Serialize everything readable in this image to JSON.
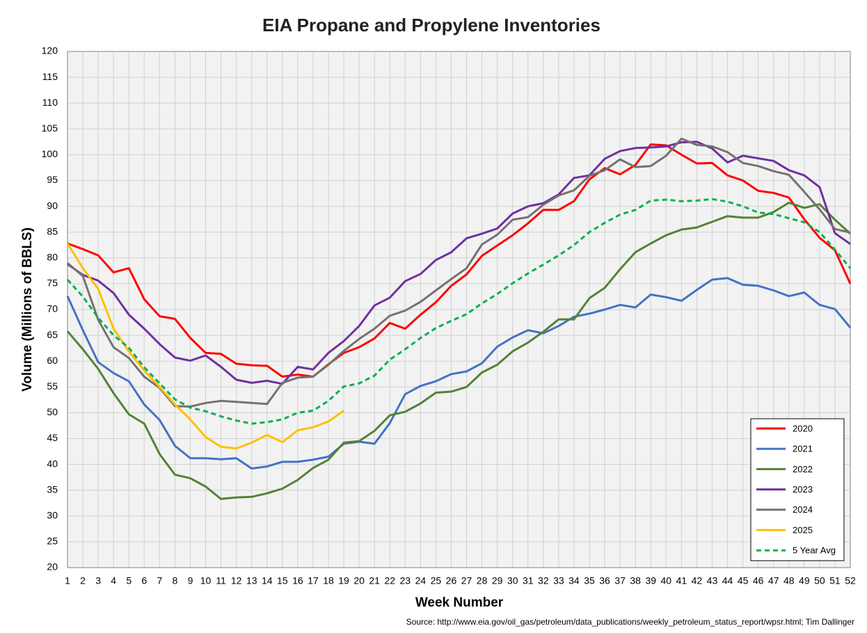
{
  "chart_data": {
    "type": "line",
    "title": "EIA Propane and Propylene Inventories",
    "x_label": "Week Number",
    "y_label": "Volume (Millions of BBLS)",
    "source": "Source: http://www.eia.gov/oil_gas/petroleum/data_publications/weekly_petroleum_status_report/wpsr.html; Tim Dallinger",
    "x": [
      1,
      2,
      3,
      4,
      5,
      6,
      7,
      8,
      9,
      10,
      11,
      12,
      13,
      14,
      15,
      16,
      17,
      18,
      19,
      20,
      21,
      22,
      23,
      24,
      25,
      26,
      27,
      28,
      29,
      30,
      31,
      32,
      33,
      34,
      35,
      36,
      37,
      38,
      39,
      40,
      41,
      42,
      43,
      44,
      45,
      46,
      47,
      48,
      49,
      50,
      51,
      52
    ],
    "xlim": [
      1,
      52
    ],
    "xticks": [
      1,
      2,
      3,
      4,
      5,
      6,
      7,
      8,
      9,
      10,
      11,
      12,
      13,
      14,
      15,
      16,
      17,
      18,
      19,
      20,
      21,
      22,
      23,
      24,
      25,
      26,
      27,
      28,
      29,
      30,
      31,
      32,
      33,
      34,
      35,
      36,
      37,
      38,
      39,
      40,
      41,
      42,
      43,
      44,
      45,
      46,
      47,
      48,
      49,
      50,
      51,
      52
    ],
    "ylim": [
      20,
      120
    ],
    "yticks": [
      20,
      25,
      30,
      35,
      40,
      45,
      50,
      55,
      60,
      65,
      70,
      75,
      80,
      85,
      90,
      95,
      100,
      105,
      110,
      115,
      120
    ],
    "grid": true,
    "legend": "lower right",
    "series": [
      {
        "name": "2020",
        "color": "#ff0000",
        "values": [
          82.8,
          81.7,
          80.5,
          77.2,
          78,
          72,
          68.7,
          68.2,
          64.5,
          61.6,
          61.4,
          59.5,
          59.2,
          59.1,
          57,
          57.4,
          57,
          59.4,
          61.6,
          62.7,
          64.4,
          67.4,
          66.3,
          69,
          71.4,
          74.6,
          76.8,
          80.4,
          82.4,
          84.4,
          86.7,
          89.3,
          89.3,
          91,
          95.2,
          97.4,
          96.2,
          98,
          102,
          101.8,
          100,
          98.3,
          98.4,
          96,
          95,
          93,
          92.6,
          91.7,
          87.5,
          83.9,
          81.5,
          75
        ]
      },
      {
        "name": "2021",
        "color": "#4472c4",
        "values": [
          72.6,
          66,
          59.8,
          57.7,
          56.1,
          51.6,
          48.6,
          43.6,
          41.2,
          41.2,
          41,
          41.2,
          39.2,
          39.6,
          40.5,
          40.5,
          40.9,
          41.5,
          44,
          44.4,
          44,
          48,
          53.6,
          55.2,
          56.1,
          57.5,
          58,
          59.6,
          62.8,
          64.6,
          66,
          65.4,
          66.8,
          68.6,
          69.2,
          70,
          70.9,
          70.4,
          72.9,
          72.4,
          71.7,
          73.8,
          75.8,
          76.1,
          74.8,
          74.6,
          73.7,
          72.6,
          73.3,
          70.9,
          70.1,
          66.5
        ]
      },
      {
        "name": "2022",
        "color": "#548235",
        "values": [
          65.8,
          62.3,
          58.5,
          53.8,
          49.7,
          47.9,
          42,
          38,
          37.3,
          35.7,
          33.3,
          33.6,
          33.7,
          34.4,
          35.3,
          37,
          39.3,
          40.9,
          44.2,
          44.5,
          46.5,
          49.5,
          50.2,
          51.8,
          53.9,
          54.1,
          55,
          57.8,
          59.3,
          61.9,
          63.6,
          65.7,
          68.1,
          68.1,
          72.2,
          74.2,
          77.8,
          81.1,
          82.8,
          84.4,
          85.5,
          85.9,
          87,
          88.1,
          87.8,
          87.8,
          88.9,
          90.7,
          89.7,
          90.4,
          87.4,
          84.7
        ]
      },
      {
        "name": "2023",
        "color": "#7030a0",
        "values": [
          78.8,
          76.7,
          75.6,
          73.2,
          69,
          66.3,
          63.3,
          60.7,
          60.1,
          61.1,
          58.9,
          56.4,
          55.8,
          56.2,
          55.6,
          58.9,
          58.4,
          61.6,
          63.9,
          66.8,
          70.8,
          72.3,
          75.5,
          76.9,
          79.6,
          81.1,
          83.8,
          84.7,
          85.7,
          88.6,
          90,
          90.6,
          92.3,
          95.5,
          96,
          99.2,
          100.7,
          101.3,
          101.4,
          101.6,
          102.4,
          102.5,
          101.2,
          98.5,
          99.8,
          99.3,
          98.8,
          97,
          96,
          93.7,
          84.8,
          82.7
        ]
      },
      {
        "name": "2024",
        "color": "#767171",
        "values": [
          79,
          76.5,
          68,
          62.7,
          60.6,
          57,
          54.8,
          51.3,
          51.2,
          51.9,
          52.3,
          52.1,
          51.9,
          51.7,
          55.8,
          56.8,
          57,
          59.3,
          62,
          64.3,
          66.3,
          68.8,
          69.8,
          71.5,
          73.7,
          75.9,
          78,
          82.6,
          84.5,
          87.4,
          87.9,
          90.3,
          92.1,
          93.1,
          95.9,
          97,
          99.1,
          97.6,
          97.8,
          99.8,
          103.1,
          101.9,
          101.6,
          100.5,
          98.4,
          97.8,
          96.8,
          96.1,
          92.8,
          89.4,
          85.6,
          84.9
        ]
      },
      {
        "name": "2025",
        "color": "#ffc000",
        "values": [
          82.8,
          78,
          74,
          66.3,
          61.9,
          58.2,
          55,
          51.6,
          48.7,
          45.3,
          43.4,
          43.1,
          44.2,
          45.7,
          44.3,
          46.6,
          47.2,
          48.3,
          50.4,
          null,
          null,
          null,
          null,
          null,
          null,
          null,
          null,
          null,
          null,
          null,
          null,
          null,
          null,
          null,
          null,
          null,
          null,
          null,
          null,
          null,
          null,
          null,
          null,
          null,
          null,
          null,
          null,
          null,
          null,
          null,
          null,
          null
        ]
      },
      {
        "name": "5 Year Avg",
        "color": "#00b050",
        "line_style": "dashed",
        "values": [
          75.8,
          72.5,
          68.4,
          65,
          62.6,
          58.8,
          55.7,
          52.6,
          51,
          50.3,
          49.3,
          48.5,
          47.9,
          48.2,
          48.7,
          50,
          50.4,
          52.3,
          55.1,
          55.7,
          57.2,
          60.3,
          62.3,
          64.5,
          66.4,
          67.8,
          69.1,
          71.2,
          73,
          75.1,
          77,
          78.7,
          80.5,
          82.5,
          85,
          86.8,
          88.4,
          89.3,
          91.1,
          91.3,
          91,
          91.1,
          91.4,
          90.9,
          90,
          88.8,
          88.5,
          87.7,
          86.9,
          85,
          81.6,
          78
        ]
      }
    ]
  }
}
